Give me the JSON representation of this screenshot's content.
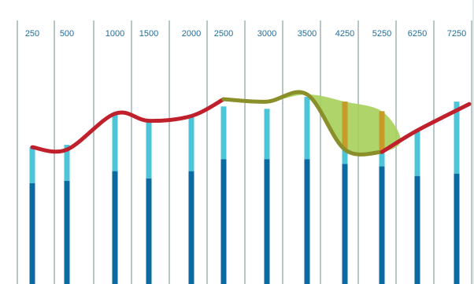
{
  "chart_data": {
    "type": "bar",
    "title": "",
    "xlabel": "",
    "ylabel": "",
    "ylim": [
      0,
      100
    ],
    "grid": true,
    "categories": [
      "250",
      "500",
      "1000",
      "1500",
      "2000",
      "2500",
      "3000",
      "3500",
      "4250",
      "5250",
      "6250",
      "7250"
    ],
    "series": [
      {
        "values": [
          42,
          43,
          47,
          44,
          47,
          52,
          52,
          52,
          50,
          49,
          45,
          46
        ]
      },
      {
        "values": [
          57,
          58,
          71,
          68,
          70,
          74,
          73,
          78,
          76,
          72,
          64,
          76
        ]
      },
      {
        "values": [
          57,
          56,
          71,
          68,
          70,
          77,
          76,
          79,
          56,
          55,
          64,
          75
        ]
      }
    ],
    "highlight_range": [
      "2500",
      "5250"
    ],
    "colors": {
      "bar_dark": "#0a6aa1",
      "bar_light": "#4ec4d8",
      "line": "#c0202b",
      "highlight_fill": "#a6d05a",
      "highlight_line": "#8a8f2a",
      "highlight_bar": "#c79a2a",
      "grid": "#b9c6c8",
      "tick_text": "#1f6c9a"
    }
  }
}
